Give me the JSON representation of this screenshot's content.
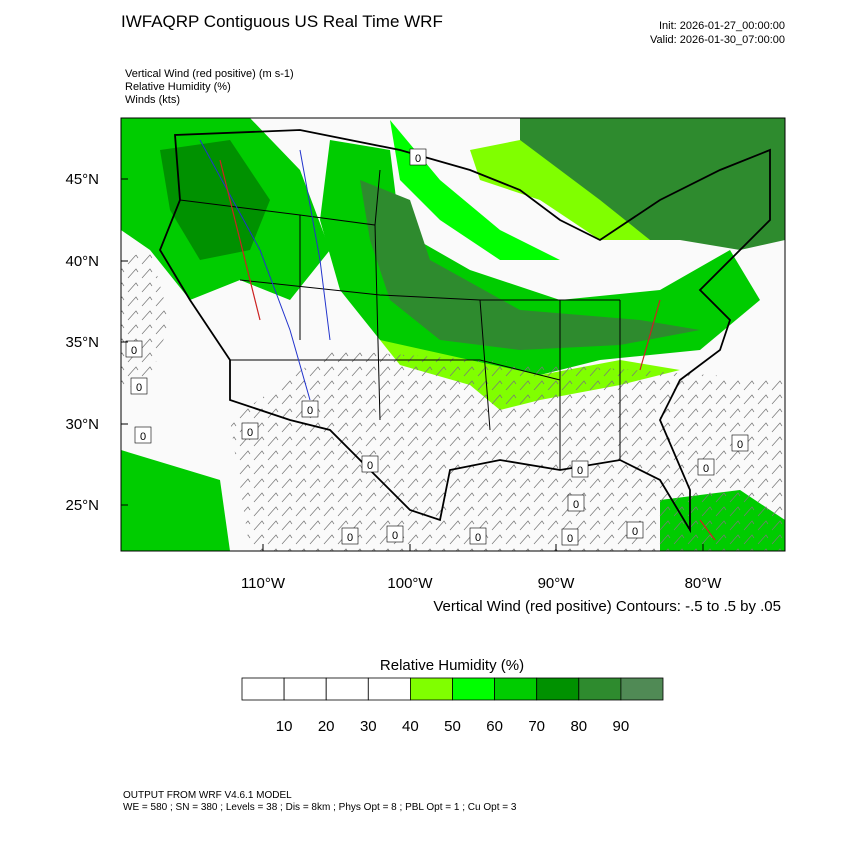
{
  "header": {
    "title": "IWFAQRP Contiguous US Real Time WRF",
    "init": "Init: 2026-01-27_00:00:00",
    "valid": "Valid: 2026-01-30_07:00:00"
  },
  "fields": [
    "Vertical Wind (red positive)   (m s-1)",
    "Relative Humidity   (%)",
    "Winds   (kts)"
  ],
  "map": {
    "lat_labels": [
      "45°N",
      "40°N",
      "35°N",
      "30°N",
      "25°N"
    ],
    "lon_labels": [
      "110°W",
      "100°W",
      "90°W",
      "80°W"
    ],
    "contour_label": "0",
    "contour_note": "Vertical Wind (red positive) Contours: -.5 to .5 by .05"
  },
  "colorbar": {
    "title": "Relative Humidity  (%)",
    "labels": [
      "10",
      "20",
      "30",
      "40",
      "50",
      "60",
      "70",
      "80",
      "90"
    ],
    "colors": [
      "#ffffff",
      "#ffffff",
      "#ffffff",
      "#ffffff",
      "#80ff00",
      "#00ff00",
      "#00cc00",
      "#009100",
      "#2e8b2e",
      "#508a55"
    ]
  },
  "footer": {
    "line1": "OUTPUT FROM WRF V4.6.1 MODEL",
    "line2": "WE = 580 ; SN = 380 ; Levels = 38 ; Dis = 8km ; Phys Opt = 8 ; PBL Opt = 1 ; Cu Opt = 3"
  }
}
